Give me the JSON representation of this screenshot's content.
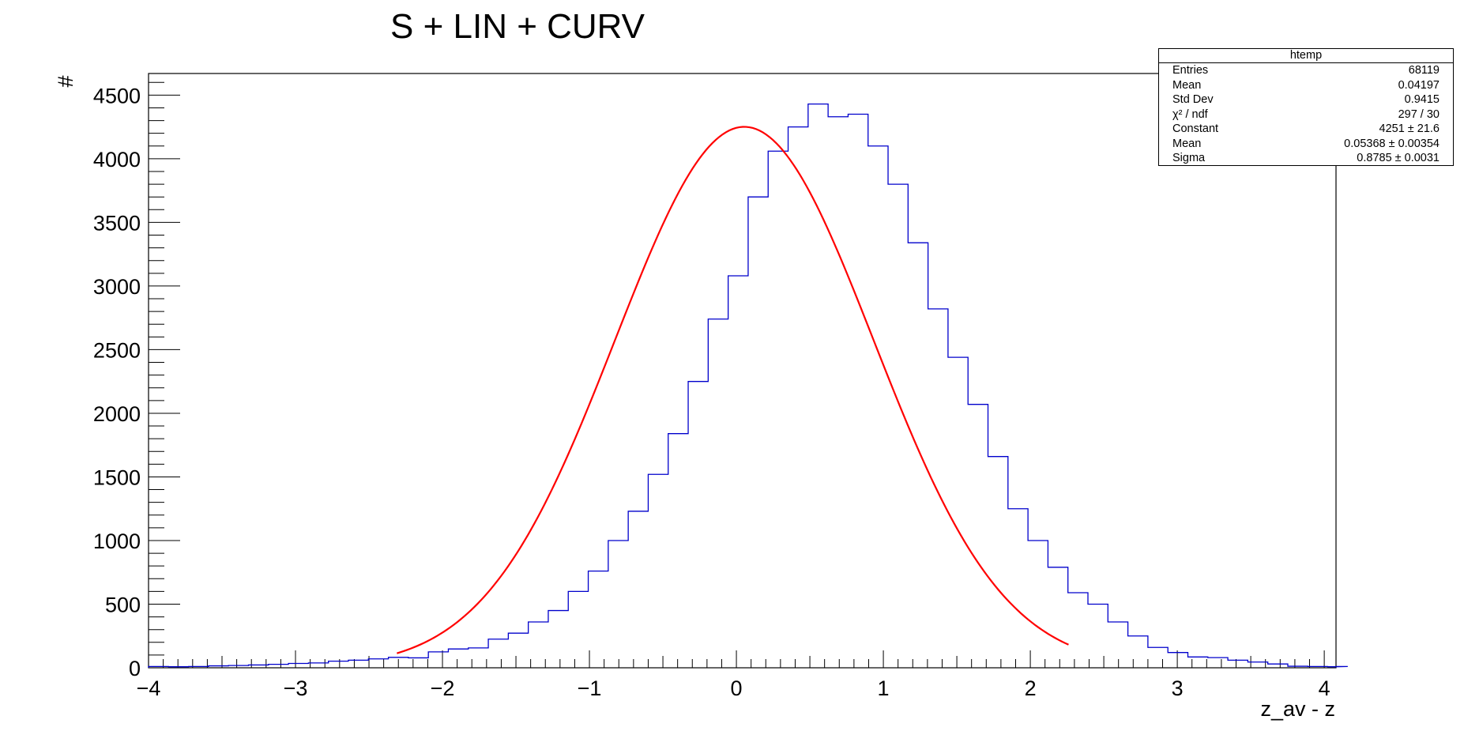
{
  "chart_data": {
    "type": "histogram",
    "title": "S + LIN + CURV",
    "xlabel": "z_av - z",
    "ylabel": "#",
    "xlim": [
      -4,
      4.08
    ],
    "ylim": [
      0,
      4670
    ],
    "x_ticks": [
      "−4",
      "−3",
      "−2",
      "−1",
      "0",
      "1",
      "2",
      "3",
      "4"
    ],
    "y_ticks": [
      "0",
      "500",
      "1000",
      "1500",
      "2000",
      "2500",
      "3000",
      "3500",
      "4000",
      "4500"
    ],
    "bin_width": 0.136,
    "bin_start": -4.0,
    "bin_counts": [
      10,
      8,
      10,
      15,
      18,
      22,
      27,
      34,
      38,
      52,
      60,
      70,
      82,
      78,
      125,
      148,
      156,
      225,
      272,
      360,
      450,
      600,
      760,
      1000,
      1230,
      1520,
      1840,
      2250,
      2740,
      3080,
      3700,
      4060,
      4250,
      4430,
      4330,
      4350,
      4100,
      3800,
      3340,
      2820,
      2440,
      2070,
      1660,
      1250,
      1000,
      790,
      590,
      500,
      360,
      250,
      160,
      120,
      85,
      80,
      60,
      45,
      30,
      12,
      10,
      8,
      10
    ],
    "histogram_color": "#0000cc",
    "fit": {
      "function": "gaus",
      "constant": 4251,
      "mean": 0.05368,
      "sigma": 0.8785,
      "range": [
        -2.31,
        2.26
      ],
      "color": "#ff0000"
    },
    "grid": false,
    "legend": "top-right"
  },
  "stats_box": {
    "title": "htemp",
    "rows": [
      {
        "label": "Entries",
        "value": "68119"
      },
      {
        "label": "Mean",
        "value": "0.04197"
      },
      {
        "label": "Std Dev",
        "value": "0.9415"
      },
      {
        "label": "χ² / ndf",
        "value": "297 / 30"
      },
      {
        "label": "Constant",
        "value": "4251 ± 21.6"
      },
      {
        "label": "Mean",
        "value": "0.05368 ± 0.00354"
      },
      {
        "label": "Sigma",
        "value": "0.8785 ± 0.0031"
      }
    ]
  }
}
